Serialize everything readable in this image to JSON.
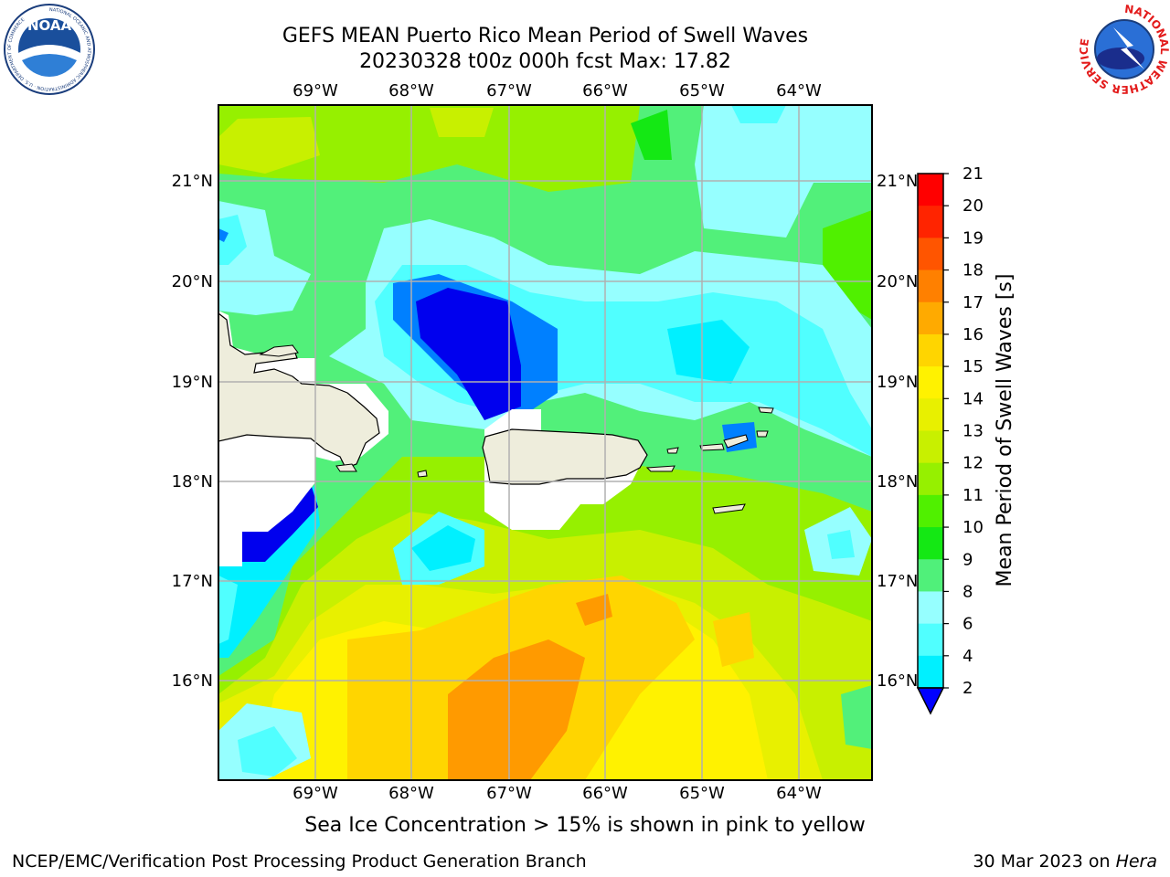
{
  "title_line1": "GEFS MEAN Puerto Rico Mean Period of Swell Waves",
  "title_line2": "20230328 t00z 000h fcst   Max: 17.82",
  "lon_ticks": [
    "69°W",
    "68°W",
    "67°W",
    "66°W",
    "65°W",
    "64°W"
  ],
  "lat_ticks": [
    "21°N",
    "20°N",
    "19°N",
    "18°N",
    "17°N",
    "16°N"
  ],
  "colorbar": {
    "label": "Mean Period of Swell Waves [s]",
    "ticks": [
      "21",
      "20",
      "19",
      "18",
      "17",
      "16",
      "15",
      "14",
      "13",
      "12",
      "11",
      "10",
      "9",
      "8",
      "6",
      "4",
      "2"
    ],
    "colors": [
      "#ff0000",
      "#ff2400",
      "#ff5500",
      "#ff8000",
      "#ffaa00",
      "#ffd500",
      "#fff200",
      "#e8f000",
      "#c8f000",
      "#96f000",
      "#50f000",
      "#14e814",
      "#50f07a",
      "#96ffff",
      "#50ffff",
      "#00f0ff",
      "#0080ff",
      "#0000ff"
    ]
  },
  "note": "Sea Ice Concentration > 15% is shown in pink to yellow",
  "footer_left": "NCEP/EMC/Verification Post Processing Product Generation Branch",
  "footer_right_prefix": "30 Mar 2023 on ",
  "footer_right_host": "Hera",
  "logos": {
    "noaa_text": "NOAA",
    "noaa_ring": "NATIONAL OCEANIC AND ATMOSPHERIC ADMINISTRATION · U.S. DEPARTMENT OF COMMERCE",
    "nws_ring": "NATIONAL WEATHER SERVICE"
  }
}
